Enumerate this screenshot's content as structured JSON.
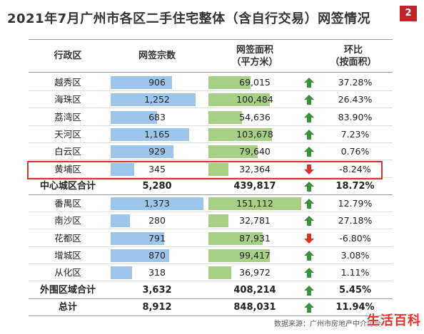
{
  "title": "2021年7月广州市各区二手住宅整体（含自行交易）网签情况",
  "page_badge": "2",
  "colors": {
    "count_bar": "#9ec6ea",
    "area_bar": "#a8cf86",
    "up_arrow": "#3c8f3c",
    "down_arrow": "#d9302e",
    "highlight": "#d9302e"
  },
  "chart_data": {
    "type": "table",
    "columns": [
      "行政区",
      "网签宗数",
      "网签面积\n（平方米）",
      "环比\n（按面积）"
    ],
    "column_headers": {
      "district": "行政区",
      "count": "网签宗数",
      "area_l1": "网签面积",
      "area_l2": "（平方米）",
      "mom_l1": "环比",
      "mom_l2": "（按面积）"
    },
    "rows": [
      {
        "district": "越秀区",
        "count": 906,
        "count_text": "906",
        "area": 69015,
        "area_text": "69,015",
        "trend": "up",
        "mom": "37.28%"
      },
      {
        "district": "海珠区",
        "count": 1252,
        "count_text": "1,252",
        "area": 100484,
        "area_text": "100,484",
        "trend": "up",
        "mom": "26.43%"
      },
      {
        "district": "荔湾区",
        "count": 683,
        "count_text": "683",
        "area": 54636,
        "area_text": "54,636",
        "trend": "up",
        "mom": "83.90%"
      },
      {
        "district": "天河区",
        "count": 1165,
        "count_text": "1,165",
        "area": 103678,
        "area_text": "103,678",
        "trend": "up",
        "mom": "7.23%"
      },
      {
        "district": "白云区",
        "count": 929,
        "count_text": "929",
        "area": 79640,
        "area_text": "79,640",
        "trend": "up",
        "mom": "0.76%"
      },
      {
        "district": "黄埔区",
        "count": 345,
        "count_text": "345",
        "area": 32364,
        "area_text": "32,364",
        "trend": "down",
        "mom": "-8.24%",
        "highlighted": true
      },
      {
        "district": "中心城区合计",
        "count_text": "5,280",
        "area_text": "439,817",
        "trend": "up",
        "mom": "18.72%",
        "subtotal": true
      },
      {
        "district": "番禺区",
        "count": 1373,
        "count_text": "1,373",
        "area": 151112,
        "area_text": "151,112",
        "trend": "up",
        "mom": "12.79%"
      },
      {
        "district": "南沙区",
        "count": 280,
        "count_text": "280",
        "area": 32781,
        "area_text": "32,781",
        "trend": "up",
        "mom": "27.18%"
      },
      {
        "district": "花都区",
        "count": 791,
        "count_text": "791",
        "area": 87931,
        "area_text": "87,931",
        "trend": "down",
        "mom": "-6.80%"
      },
      {
        "district": "增城区",
        "count": 870,
        "count_text": "870",
        "area": 99417,
        "area_text": "99,417",
        "trend": "up",
        "mom": "3.08%"
      },
      {
        "district": "从化区",
        "count": 318,
        "count_text": "318",
        "area": 36972,
        "area_text": "36,972",
        "trend": "up",
        "mom": "1.11%"
      },
      {
        "district": "外围区域合计",
        "count_text": "3,632",
        "area_text": "408,214",
        "trend": "up",
        "mom": "5.45%",
        "subtotal": true
      },
      {
        "district": "总计",
        "count_text": "8,912",
        "area_text": "848,031",
        "trend": "up",
        "mom": "11.94%",
        "subtotal": true
      }
    ],
    "count_max": 1373,
    "area_max": 151112
  },
  "source": "数据来源：广州市房地产中介协会",
  "watermark": "生活百科"
}
